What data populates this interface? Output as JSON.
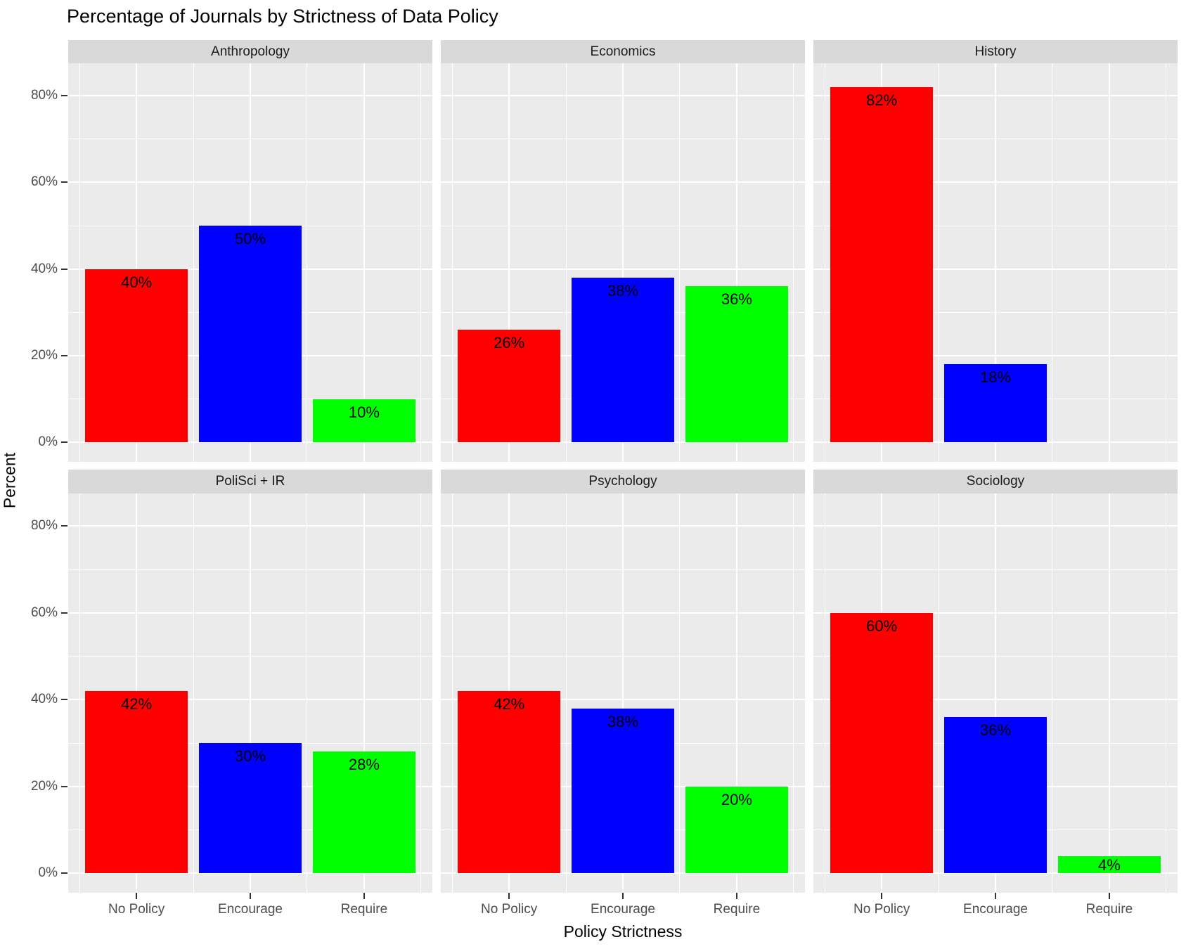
{
  "chart_data": {
    "type": "bar",
    "title": "Percentage of Journals by Strictness of Data Policy",
    "xlabel": "Policy Strictness",
    "ylabel": "Percent",
    "categories": [
      "No Policy",
      "Encourage",
      "Require"
    ],
    "series_colors": [
      "#FF0000",
      "#0000FF",
      "#00FF00"
    ],
    "y_ticks": [
      {
        "value": 0,
        "label": "0%"
      },
      {
        "value": 20,
        "label": "20%"
      },
      {
        "value": 40,
        "label": "40%"
      },
      {
        "value": 60,
        "label": "60%"
      },
      {
        "value": 80,
        "label": "80%"
      }
    ],
    "y_minor_ticks": [
      10,
      30,
      50,
      70
    ],
    "ylim": [
      -4.5,
      87.5
    ],
    "grid": "on",
    "legend": "none",
    "facet_layout": {
      "rows": 2,
      "cols": 3
    },
    "facets": [
      {
        "label": "Anthropology",
        "values": [
          40,
          50,
          10
        ],
        "value_labels": [
          "40%",
          "50%",
          "10%"
        ]
      },
      {
        "label": "Economics",
        "values": [
          26,
          38,
          36
        ],
        "value_labels": [
          "26%",
          "38%",
          "36%"
        ]
      },
      {
        "label": "History",
        "values": [
          82,
          18,
          0
        ],
        "value_labels": [
          "82%",
          "18%",
          ""
        ]
      },
      {
        "label": "PoliSci + IR",
        "values": [
          42,
          30,
          28
        ],
        "value_labels": [
          "42%",
          "30%",
          "28%"
        ]
      },
      {
        "label": "Psychology",
        "values": [
          42,
          38,
          20
        ],
        "value_labels": [
          "42%",
          "38%",
          "20%"
        ]
      },
      {
        "label": "Sociology",
        "values": [
          60,
          36,
          4
        ],
        "value_labels": [
          "60%",
          "36%",
          "4%"
        ]
      }
    ],
    "style_colors": {
      "panel_background": "#EBEBEB",
      "strip_background": "#D9D9D9",
      "gridline": "#FFFFFF",
      "tick_text": "#4D4D4D",
      "label_text": "#000000"
    }
  }
}
